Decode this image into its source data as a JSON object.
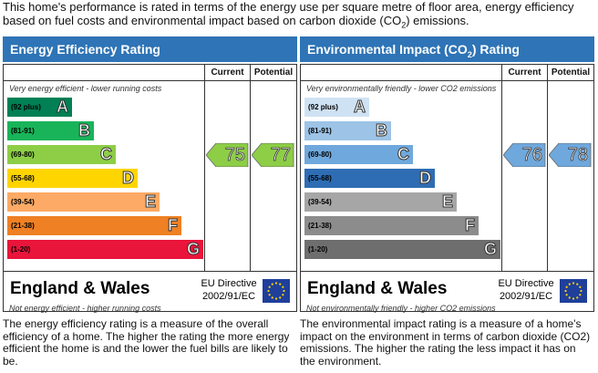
{
  "intro": {
    "text_before": "This home's performance is rated in terms of the energy use per square metre of floor area, energy efficiency based on fuel costs and environmental impact based on carbon dioxide (CO",
    "sub": "2",
    "text_after": ") emissions."
  },
  "energy": {
    "title": "Energy Efficiency Rating",
    "col_current": "Current",
    "col_potential": "Potential",
    "top_note": "Very energy efficient - lower running costs",
    "bottom_note": "Not energy efficient - higher running costs",
    "bands": [
      {
        "range": "(92 plus)",
        "letter": "A",
        "color": "#008054"
      },
      {
        "range": "(81-91)",
        "letter": "B",
        "color": "#19b459"
      },
      {
        "range": "(69-80)",
        "letter": "C",
        "color": "#8dce46"
      },
      {
        "range": "(55-68)",
        "letter": "D",
        "color": "#ffd500"
      },
      {
        "range": "(39-54)",
        "letter": "E",
        "color": "#fcaa65"
      },
      {
        "range": "(21-38)",
        "letter": "F",
        "color": "#ef8023"
      },
      {
        "range": "(1-20)",
        "letter": "G",
        "color": "#e9153b"
      }
    ],
    "current": "75",
    "potential": "77",
    "current_band": "C",
    "potential_band": "C",
    "arrow_color": "#8dce46",
    "region": "England & Wales",
    "directive_line1": "EU Directive",
    "directive_line2": "2002/91/EC",
    "description": "The energy efficiency rating is a measure of the overall efficiency of a home. The higher the rating the more energy efficient the home is and the lower the fuel bills are likely to be."
  },
  "environment": {
    "title_before": "Environmental Impact (CO",
    "title_sub": "2",
    "title_after": ") Rating",
    "col_current": "Current",
    "col_potential": "Potential",
    "top_note": "Very environmentally friendly - lower CO2 emissions",
    "bottom_note": "Not environmentally friendly - higher CO2 emissions",
    "bands": [
      {
        "range": "(92 plus)",
        "letter": "A",
        "color": "#cfe2f3"
      },
      {
        "range": "(81-91)",
        "letter": "B",
        "color": "#9dc3e6"
      },
      {
        "range": "(69-80)",
        "letter": "C",
        "color": "#6fa8dc"
      },
      {
        "range": "(55-68)",
        "letter": "D",
        "color": "#2e6db4"
      },
      {
        "range": "(39-54)",
        "letter": "E",
        "color": "#a6a6a6"
      },
      {
        "range": "(21-38)",
        "letter": "F",
        "color": "#8c8c8c"
      },
      {
        "range": "(1-20)",
        "letter": "G",
        "color": "#6e6e6e"
      }
    ],
    "current": "76",
    "potential": "78",
    "current_band": "C",
    "potential_band": "C",
    "arrow_color": "#6fa8dc",
    "region": "England & Wales",
    "directive_line1": "EU Directive",
    "directive_line2": "2002/91/EC",
    "description": "The environmental impact rating is a measure of a home's impact on the environment in terms of carbon dioxide (CO2) emissions. The higher the rating the less impact it has on the environment."
  }
}
